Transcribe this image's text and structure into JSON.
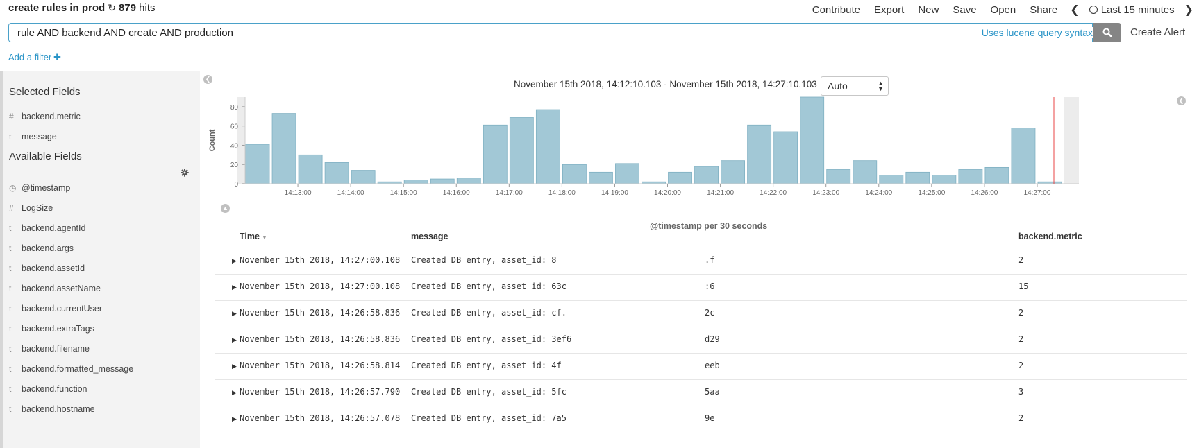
{
  "header": {
    "title": "create rules in prod",
    "hits": "879",
    "hits_suffix": "hits",
    "nav": [
      "Contribute",
      "Export",
      "New",
      "Save",
      "Open",
      "Share"
    ],
    "time_range": "Last 15 minutes"
  },
  "query": {
    "value": "rule AND backend AND create AND production",
    "syntax_link": "Uses lucene query syntax",
    "create_alert": "Create Alert"
  },
  "filter": {
    "add_label": "Add a filter"
  },
  "sidebar": {
    "selected_title": "Selected Fields",
    "selected": [
      {
        "type": "#",
        "name": "backend.metric"
      },
      {
        "type": "t",
        "name": "message"
      }
    ],
    "available_title": "Available Fields",
    "available": [
      {
        "type": "clock",
        "name": "@timestamp"
      },
      {
        "type": "#",
        "name": "LogSize"
      },
      {
        "type": "t",
        "name": "backend.agentId"
      },
      {
        "type": "t",
        "name": "backend.args"
      },
      {
        "type": "t",
        "name": "backend.assetId"
      },
      {
        "type": "t",
        "name": "backend.assetName"
      },
      {
        "type": "t",
        "name": "backend.currentUser"
      },
      {
        "type": "t",
        "name": "backend.extraTags"
      },
      {
        "type": "t",
        "name": "backend.filename"
      },
      {
        "type": "t",
        "name": "backend.formatted_message"
      },
      {
        "type": "t",
        "name": "backend.function"
      },
      {
        "type": "t",
        "name": "backend.hostname"
      }
    ]
  },
  "histogram": {
    "date_range": "November 15th 2018, 14:12:10.103 - November 15th 2018, 14:27:10.103 —",
    "interval": "Auto",
    "x_axis_label": "@timestamp per 30 seconds"
  },
  "chart_data": {
    "type": "bar",
    "ylabel": "Count",
    "xlabel": "@timestamp per 30 seconds",
    "ylim": [
      0,
      90
    ],
    "yticks": [
      0,
      20,
      40,
      60,
      80
    ],
    "xticks": [
      "14:13:00",
      "14:14:00",
      "14:15:00",
      "14:16:00",
      "14:17:00",
      "14:18:00",
      "14:19:00",
      "14:20:00",
      "14:21:00",
      "14:22:00",
      "14:23:00",
      "14:24:00",
      "14:25:00",
      "14:26:00",
      "14:27:00"
    ],
    "categories": [
      "14:12:00",
      "14:12:30",
      "14:13:00",
      "14:13:30",
      "14:14:00",
      "14:14:30",
      "14:15:00",
      "14:15:30",
      "14:16:00",
      "14:16:30",
      "14:17:00",
      "14:17:30",
      "14:18:00",
      "14:18:30",
      "14:19:00",
      "14:19:30",
      "14:20:00",
      "14:20:30",
      "14:21:00",
      "14:21:30",
      "14:22:00",
      "14:22:30",
      "14:23:00",
      "14:23:30",
      "14:24:00",
      "14:24:30",
      "14:25:00",
      "14:25:30",
      "14:26:00",
      "14:26:30",
      "14:27:00"
    ],
    "values": [
      41,
      73,
      30,
      22,
      14,
      2,
      4,
      5,
      6,
      61,
      69,
      77,
      20,
      12,
      21,
      2,
      12,
      18,
      24,
      61,
      54,
      90,
      15,
      24,
      9,
      12,
      9,
      15,
      17,
      58,
      2
    ],
    "color": "#a2c8d6",
    "now_marker_color": "#e94646"
  },
  "table": {
    "columns": [
      "Time",
      "message",
      "backend.metric"
    ],
    "rows": [
      {
        "time": "November 15th 2018, 14:27:00.108",
        "msg": "Created DB entry, asset_id: 8",
        "tail": ".f",
        "metric": "2"
      },
      {
        "time": "November 15th 2018, 14:27:00.108",
        "msg": "Created DB entry, asset_id: 63c",
        "tail": ":6",
        "metric": "15"
      },
      {
        "time": "November 15th 2018, 14:26:58.836",
        "msg": "Created DB entry, asset_id: cf.",
        "tail": "2c",
        "metric": "2"
      },
      {
        "time": "November 15th 2018, 14:26:58.836",
        "msg": "Created DB entry, asset_id: 3ef6",
        "tail": "d29",
        "metric": "2"
      },
      {
        "time": "November 15th 2018, 14:26:58.814",
        "msg": "Created DB entry, asset_id: 4f",
        "tail": "eeb",
        "metric": "2"
      },
      {
        "time": "November 15th 2018, 14:26:57.790",
        "msg": "Created DB entry, asset_id: 5fc",
        "tail": "5aa",
        "metric": "3"
      },
      {
        "time": "November 15th 2018, 14:26:57.078",
        "msg": "Created DB entry, asset_id: 7a5",
        "tail": "9e",
        "metric": "2"
      }
    ]
  }
}
